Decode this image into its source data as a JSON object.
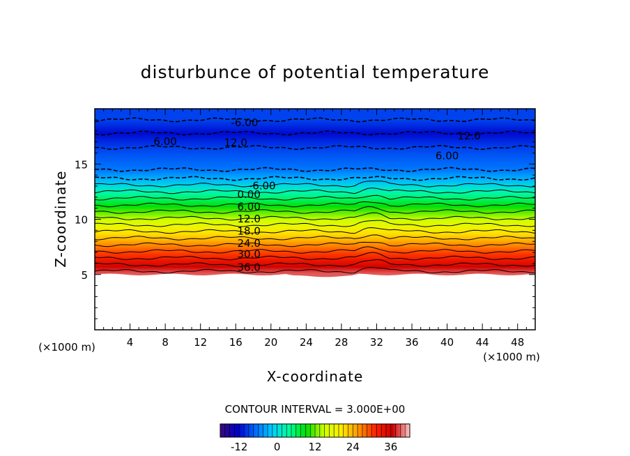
{
  "chart_data": {
    "type": "heatmap",
    "title": "disturbunce of potential temperature",
    "xlabel": "X-coordinate",
    "ylabel": "Z-coordinate",
    "x_unit": "(×1000 m)",
    "y_unit": "(×1000 m)",
    "xlim": [
      0,
      50
    ],
    "ylim": [
      0,
      20
    ],
    "x_ticks": [
      "4",
      "8",
      "12",
      "16",
      "20",
      "24",
      "28",
      "32",
      "36",
      "40",
      "44",
      "48"
    ],
    "y_ticks": [
      "5",
      "10",
      "15"
    ],
    "x_tick_values": [
      4,
      8,
      12,
      16,
      20,
      24,
      28,
      32,
      36,
      40,
      44,
      48
    ],
    "y_tick_values": [
      5,
      10,
      15
    ],
    "contour_interval_text": "CONTOUR INTERVAL = 3.000E+00",
    "contour_interval": 3.0,
    "colorbar": {
      "range": [
        -18,
        42
      ],
      "tick_labels": [
        "-12",
        "0",
        "12",
        "24",
        "36"
      ],
      "tick_values": [
        -12,
        0,
        12,
        24,
        36
      ],
      "colors": [
        "#3a0a78",
        "#0000cc",
        "#0066ff",
        "#00ccff",
        "#00ff99",
        "#00dd00",
        "#ccff00",
        "#ffee00",
        "#ff9900",
        "#ff2200",
        "#cc0000",
        "#ffc8c8"
      ]
    },
    "blank_below_z": 5,
    "stratified_layers": [
      {
        "z": 5.3,
        "value": 39
      },
      {
        "z": 5.9,
        "value": 36
      },
      {
        "z": 6.5,
        "value": 33
      },
      {
        "z": 7.1,
        "value": 30
      },
      {
        "z": 7.7,
        "value": 27
      },
      {
        "z": 8.3,
        "value": 24
      },
      {
        "z": 8.9,
        "value": 21
      },
      {
        "z": 9.5,
        "value": 18
      },
      {
        "z": 10.1,
        "value": 15
      },
      {
        "z": 10.7,
        "value": 12
      },
      {
        "z": 11.3,
        "value": 9
      },
      {
        "z": 11.9,
        "value": 6
      },
      {
        "z": 12.5,
        "value": 3
      },
      {
        "z": 13.1,
        "value": 0
      },
      {
        "z": 13.7,
        "value": -3
      },
      {
        "z": 14.5,
        "value": -6
      },
      {
        "z": 16.5,
        "value": -9
      },
      {
        "z": 17.8,
        "value": -12
      },
      {
        "z": 19.0,
        "value": -9
      }
    ],
    "contour_labels": [
      {
        "text": "-6.00",
        "x": 17.0,
        "z": 18.8
      },
      {
        "text": "6.00",
        "x": 8.0,
        "z": 17.1
      },
      {
        "text": "12.0",
        "x": 16.0,
        "z": 17.0
      },
      {
        "text": "12.0",
        "x": 42.5,
        "z": 17.6
      },
      {
        "text": "6.00",
        "x": 40.0,
        "z": 15.8
      },
      {
        "text": "-6.00",
        "x": 19.0,
        "z": 13.1
      },
      {
        "text": "0.00",
        "x": 17.5,
        "z": 12.3
      },
      {
        "text": "6.00",
        "x": 17.5,
        "z": 11.2
      },
      {
        "text": "12.0",
        "x": 17.5,
        "z": 10.1
      },
      {
        "text": "18.0",
        "x": 17.5,
        "z": 9.0
      },
      {
        "text": "24.0",
        "x": 17.5,
        "z": 7.9
      },
      {
        "text": "30.0",
        "x": 17.5,
        "z": 6.9
      },
      {
        "text": "36.0",
        "x": 17.5,
        "z": 5.7
      }
    ]
  }
}
